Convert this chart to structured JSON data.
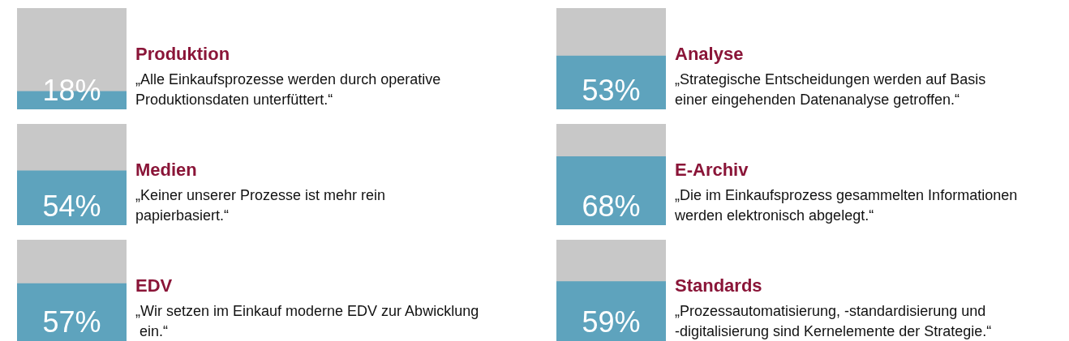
{
  "chart_data": [
    {
      "type": "bar",
      "title": "Produktion",
      "annotations": [
        "„Alle Einkaufsprozesse werden durch operative Produktionsdaten unterfüttert.“"
      ],
      "categories": [
        null
      ],
      "values": [
        18
      ],
      "value_labels": [
        "18%"
      ],
      "color": "#5ea3bd",
      "ylim": [
        0,
        100
      ],
      "tick_labels": false
    },
    {
      "type": "bar",
      "title": "Analyse",
      "annotations": [
        "„Strategische Entscheidungen werden auf Basis einer eingehenden Datenanalyse getroffen.“"
      ],
      "categories": [
        null
      ],
      "values": [
        53
      ],
      "value_labels": [
        "53%"
      ],
      "color": "#5ea3bd",
      "ylim": [
        0,
        100
      ],
      "tick_labels": false
    },
    {
      "type": "bar",
      "title": "Medien",
      "annotations": [
        "„Keiner unserer Prozesse ist mehr rein papierbasiert.“"
      ],
      "categories": [
        null
      ],
      "values": [
        54
      ],
      "value_labels": [
        "54%"
      ],
      "color": "#5ea3bd",
      "ylim": [
        0,
        100
      ],
      "tick_labels": false
    },
    {
      "type": "bar",
      "title": "E-Archiv",
      "annotations": [
        "„Die im Einkaufsprozess gesammelten Informationen werden elektronisch abgelegt.“"
      ],
      "categories": [
        null
      ],
      "values": [
        68
      ],
      "value_labels": [
        "68%"
      ],
      "color": "#5ea3bd",
      "ylim": [
        0,
        100
      ],
      "tick_labels": false
    },
    {
      "type": "bar",
      "title": "EDV",
      "annotations": [
        "„Wir setzen im Einkauf moderne EDV zur Abwicklung ein.“"
      ],
      "categories": [
        null
      ],
      "values": [
        57
      ],
      "value_labels": [
        "57%"
      ],
      "color": "#5ea3bd",
      "ylim": [
        0,
        100
      ],
      "tick_labels": false
    },
    {
      "type": "bar",
      "title": "Standards",
      "annotations": [
        "„Prozessautomatisierung, -standardisierung und -digitalisierung sind Kernelemente der Strategie.“"
      ],
      "categories": [
        null
      ],
      "values": [
        59
      ],
      "value_labels": [
        "59%"
      ],
      "color": "#5ea3bd",
      "ylim": [
        0,
        100
      ],
      "tick_labels": false
    }
  ]
}
